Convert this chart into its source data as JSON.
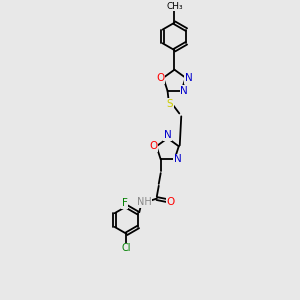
{
  "bg_color": "#e8e8e8",
  "bond_color": "#000000",
  "atom_colors": {
    "N": "#0000cc",
    "O": "#ff0000",
    "S": "#cccc00",
    "F": "#008000",
    "Cl": "#008000",
    "C": "#000000",
    "H": "#888888"
  },
  "lw": 1.3,
  "font_size": 7.5
}
